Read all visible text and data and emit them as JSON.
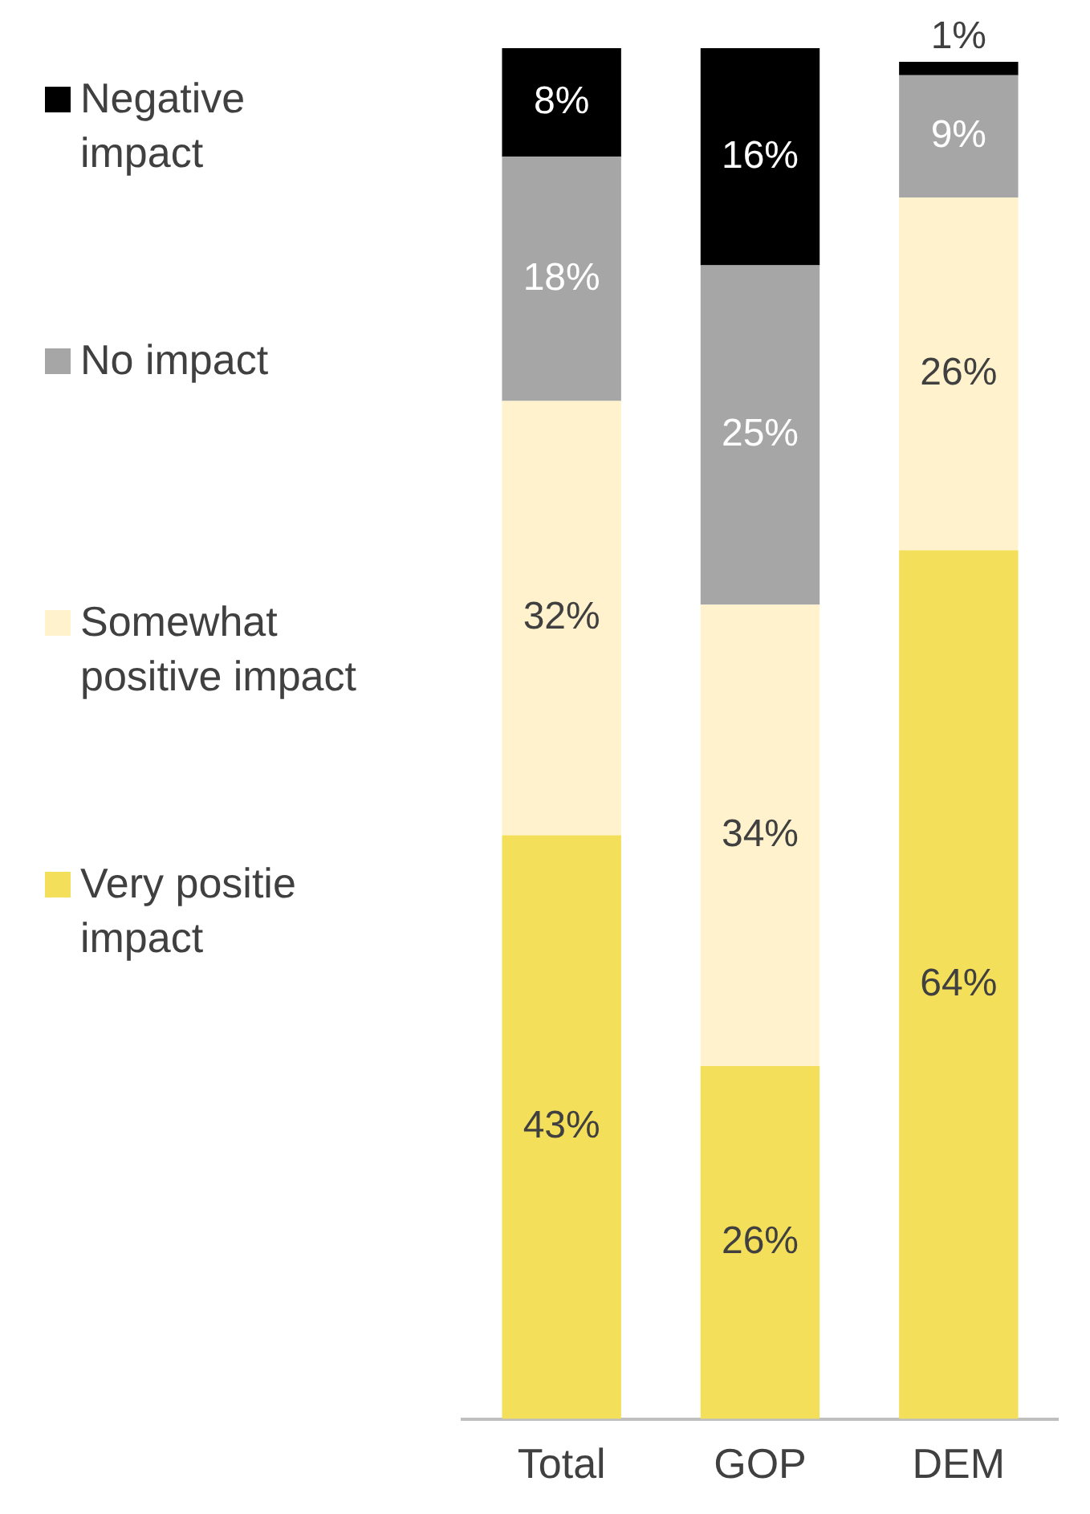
{
  "chart_data": {
    "type": "bar",
    "stacked": true,
    "categories": [
      "Total",
      "GOP",
      "DEM"
    ],
    "ylim": [
      0,
      101
    ],
    "tick_labels": "x",
    "grid": false,
    "legend": "left",
    "series": [
      {
        "name": "Very positie impact",
        "color": "#f4df5a",
        "values": [
          43,
          26,
          64
        ],
        "value_labels": [
          "43%",
          "26%",
          "64%"
        ]
      },
      {
        "name": "Somewhat positive impact",
        "color": "#fff2cc",
        "values": [
          32,
          34,
          26
        ],
        "value_labels": [
          "32%",
          "34%",
          "26%"
        ]
      },
      {
        "name": "No impact",
        "color": "#a6a6a6",
        "values": [
          18,
          25,
          9
        ],
        "value_labels": [
          "18%",
          "25%",
          "9%"
        ]
      },
      {
        "name": "Negative impact",
        "color": "#000000",
        "values": [
          8,
          16,
          1
        ],
        "value_labels": [
          "8%",
          "16%",
          "1%"
        ]
      }
    ]
  }
}
